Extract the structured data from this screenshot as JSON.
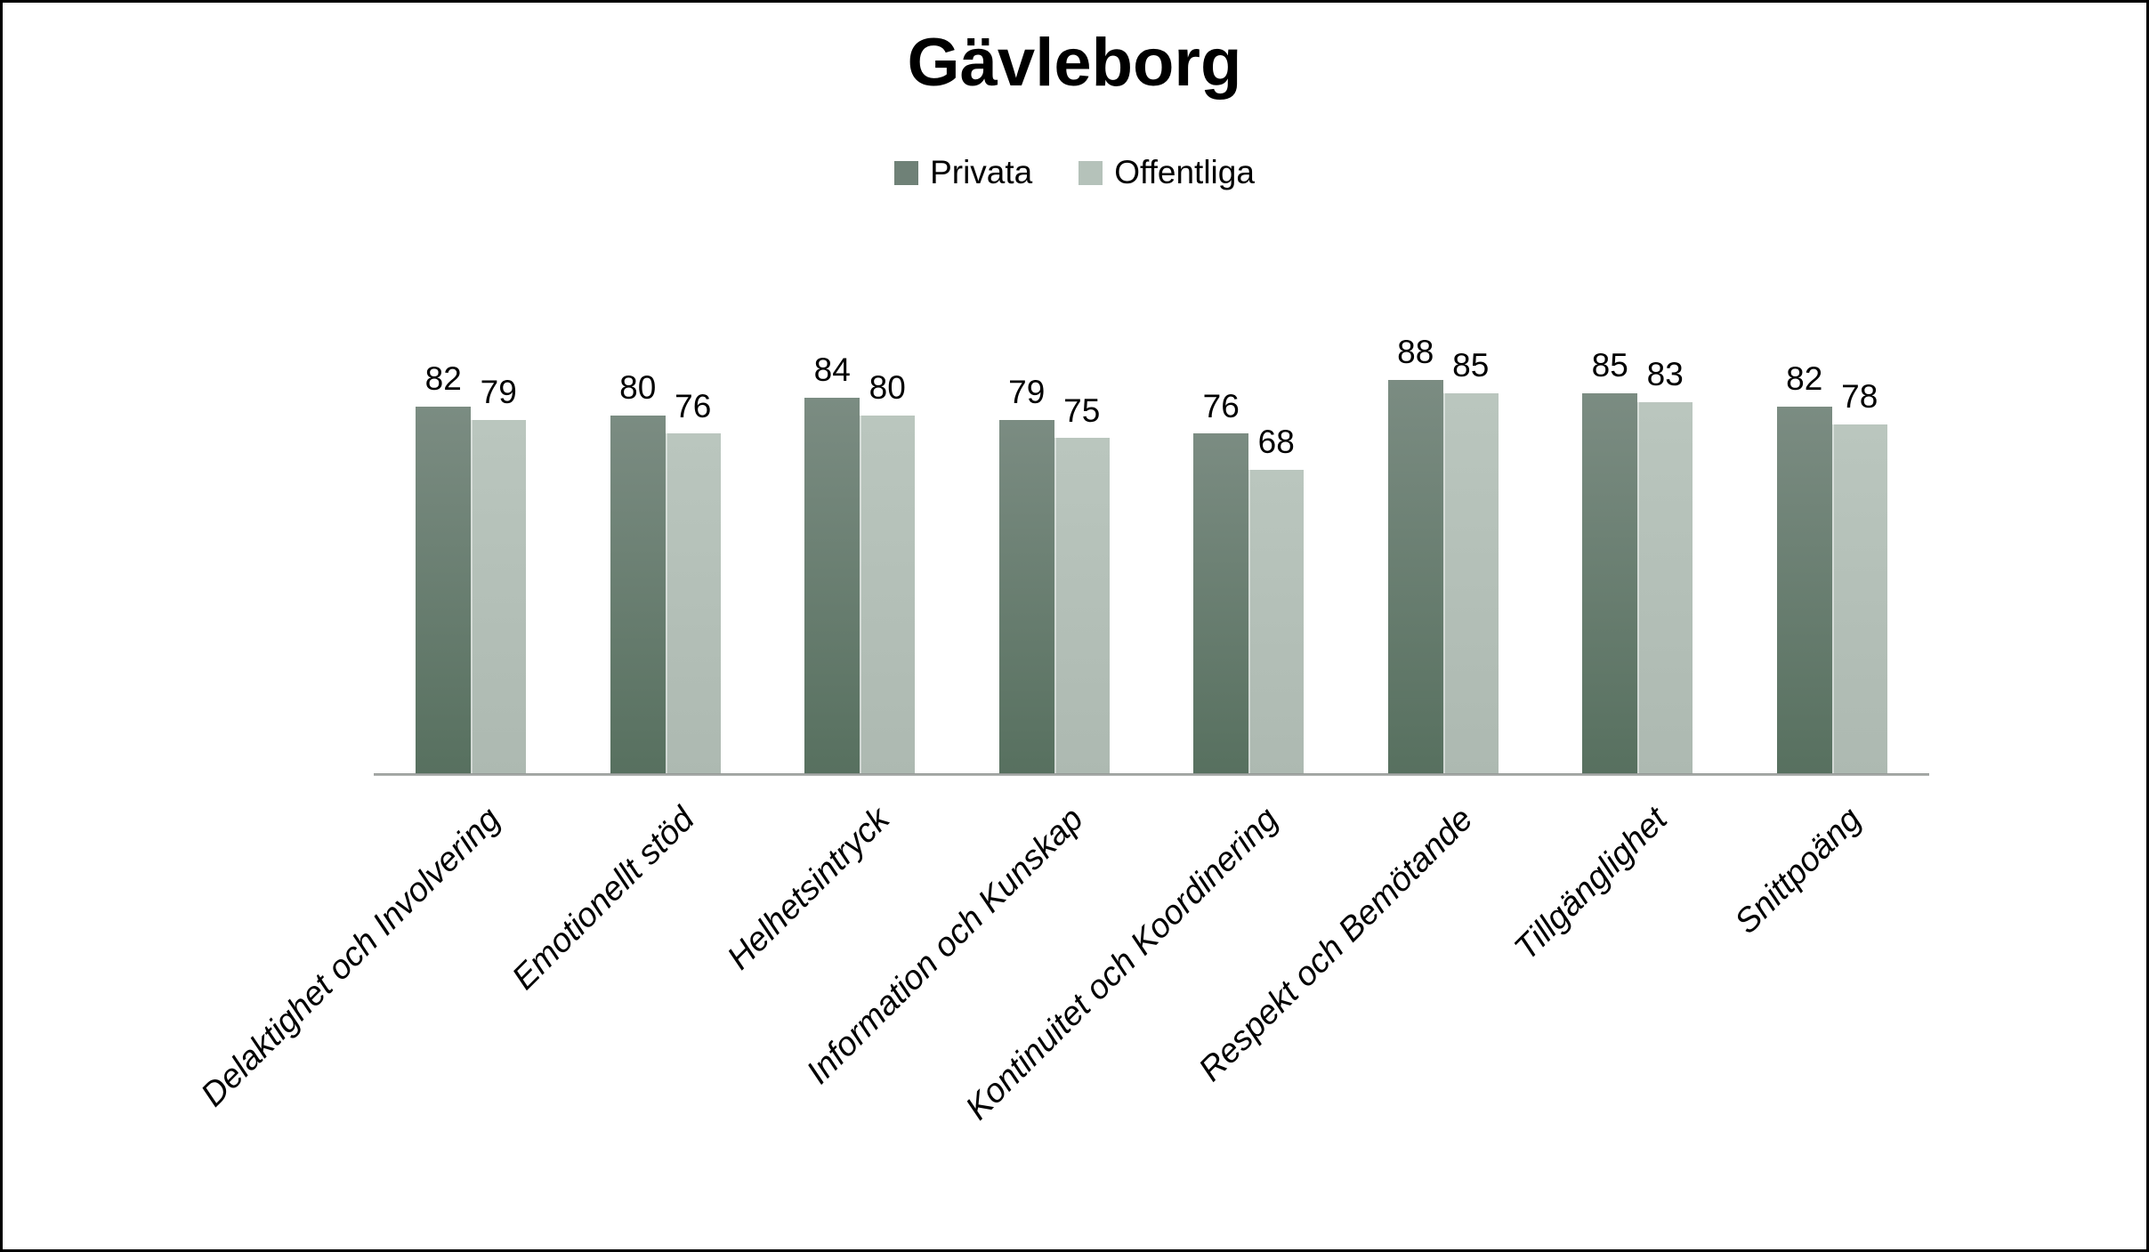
{
  "frame": {
    "background": "#ffffff",
    "border_color": "#000000",
    "axis_line_color": "#9a9f9b",
    "text_color": "#000000"
  },
  "chart_data": {
    "type": "bar",
    "title": "Gävleborg",
    "categories": [
      "Delaktighet och Involvering",
      "Emotionellt stöd",
      "Helhetsintryck",
      "Information och Kunskap",
      "Kontinuitet och Koordinering",
      "Respekt och Bemötande",
      "Tillgänglighet",
      "Snittpoäng"
    ],
    "series": [
      {
        "name": "Privata",
        "values": [
          82,
          80,
          84,
          79,
          76,
          88,
          85,
          82
        ],
        "color": "#6F8177",
        "gradient_top": "#7B8C82",
        "gradient_bottom": "#57705F"
      },
      {
        "name": "Offentliga",
        "values": [
          79,
          76,
          80,
          75,
          68,
          85,
          83,
          78
        ],
        "color": "#B5C2BA",
        "gradient_top": "#BAC6BE",
        "gradient_bottom": "#ADB9B1"
      }
    ],
    "ylim": [
      0,
      100
    ],
    "xlabel": "",
    "ylabel": "",
    "grid": false,
    "y_axis_ticks_shown": false,
    "legend_position": "top",
    "value_labels_shown": true,
    "x_label_rotation_deg": -45
  }
}
